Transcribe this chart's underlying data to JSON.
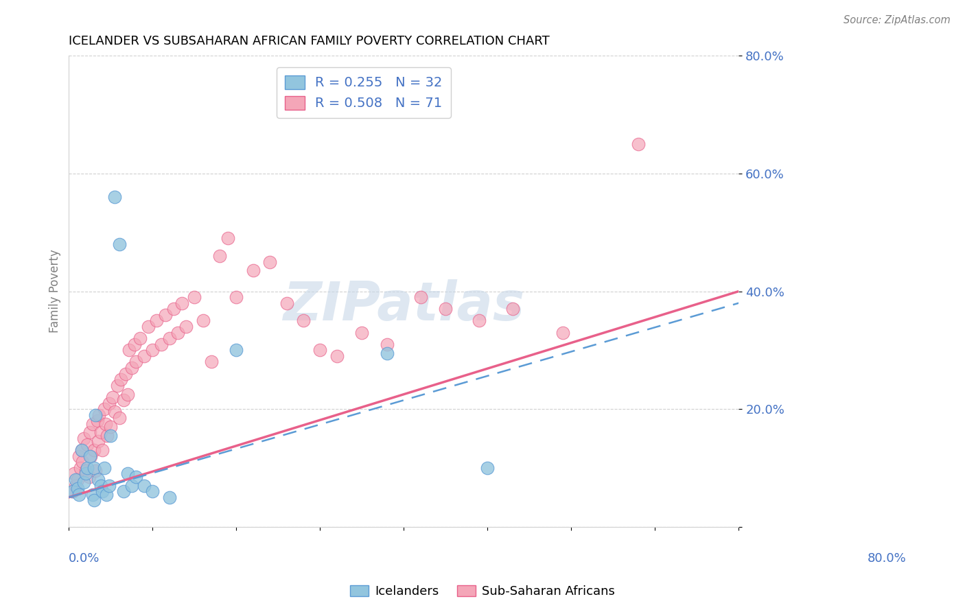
{
  "title": "ICELANDER VS SUBSAHARAN AFRICAN FAMILY POVERTY CORRELATION CHART",
  "source": "Source: ZipAtlas.com",
  "ylabel": "Family Poverty",
  "yticks": [
    0.0,
    0.2,
    0.4,
    0.6,
    0.8
  ],
  "ytick_labels": [
    "",
    "20.0%",
    "40.0%",
    "60.0%",
    "80.0%"
  ],
  "legend_title1": "R = 0.255   N = 32",
  "legend_title2": "R = 0.508   N = 71",
  "legend_label1": "Icelanders",
  "legend_label2": "Sub-Saharan Africans",
  "blue_color": "#92c5de",
  "pink_color": "#f4a6b8",
  "blue_line_color": "#5b9bd5",
  "pink_line_color": "#e8608a",
  "watermark": "ZIPatlas",
  "xlim": [
    0.0,
    0.8
  ],
  "ylim": [
    0.0,
    0.8
  ],
  "icelander_x": [
    0.005,
    0.008,
    0.01,
    0.012,
    0.015,
    0.018,
    0.02,
    0.022,
    0.025,
    0.028,
    0.03,
    0.03,
    0.032,
    0.035,
    0.038,
    0.04,
    0.042,
    0.045,
    0.048,
    0.05,
    0.055,
    0.06,
    0.065,
    0.07,
    0.075,
    0.08,
    0.09,
    0.1,
    0.12,
    0.2,
    0.38,
    0.5
  ],
  "icelander_y": [
    0.06,
    0.08,
    0.065,
    0.055,
    0.13,
    0.075,
    0.09,
    0.1,
    0.12,
    0.055,
    0.045,
    0.1,
    0.19,
    0.08,
    0.07,
    0.06,
    0.1,
    0.055,
    0.07,
    0.155,
    0.56,
    0.48,
    0.06,
    0.09,
    0.07,
    0.085,
    0.07,
    0.06,
    0.05,
    0.3,
    0.295,
    0.1
  ],
  "subsaharan_x": [
    0.004,
    0.006,
    0.008,
    0.01,
    0.012,
    0.014,
    0.015,
    0.016,
    0.018,
    0.02,
    0.022,
    0.024,
    0.025,
    0.026,
    0.028,
    0.03,
    0.032,
    0.034,
    0.035,
    0.036,
    0.038,
    0.04,
    0.042,
    0.044,
    0.046,
    0.048,
    0.05,
    0.052,
    0.055,
    0.058,
    0.06,
    0.062,
    0.065,
    0.068,
    0.07,
    0.072,
    0.075,
    0.078,
    0.08,
    0.085,
    0.09,
    0.095,
    0.1,
    0.105,
    0.11,
    0.115,
    0.12,
    0.125,
    0.13,
    0.135,
    0.14,
    0.15,
    0.16,
    0.17,
    0.18,
    0.19,
    0.2,
    0.22,
    0.24,
    0.26,
    0.28,
    0.3,
    0.32,
    0.35,
    0.38,
    0.42,
    0.45,
    0.49,
    0.53,
    0.59,
    0.68
  ],
  "subsaharan_y": [
    0.06,
    0.09,
    0.07,
    0.08,
    0.12,
    0.1,
    0.13,
    0.11,
    0.15,
    0.095,
    0.14,
    0.085,
    0.16,
    0.12,
    0.175,
    0.13,
    0.095,
    0.18,
    0.145,
    0.19,
    0.16,
    0.13,
    0.2,
    0.175,
    0.155,
    0.21,
    0.17,
    0.22,
    0.195,
    0.24,
    0.185,
    0.25,
    0.215,
    0.26,
    0.225,
    0.3,
    0.27,
    0.31,
    0.28,
    0.32,
    0.29,
    0.34,
    0.3,
    0.35,
    0.31,
    0.36,
    0.32,
    0.37,
    0.33,
    0.38,
    0.34,
    0.39,
    0.35,
    0.28,
    0.46,
    0.49,
    0.39,
    0.435,
    0.45,
    0.38,
    0.35,
    0.3,
    0.29,
    0.33,
    0.31,
    0.39,
    0.37,
    0.35,
    0.37,
    0.33,
    0.65
  ]
}
